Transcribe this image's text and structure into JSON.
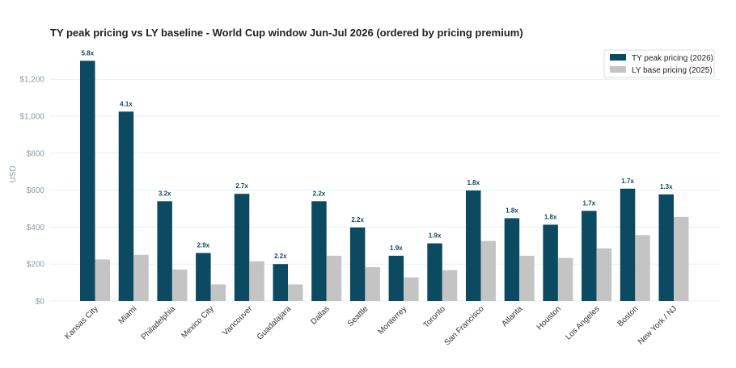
{
  "chart_data": {
    "type": "bar",
    "title": "TY peak pricing vs LY baseline - World Cup window Jun-Jul 2026 (ordered by pricing premium)",
    "ylabel": "USD",
    "xlabel": "",
    "ylim": [
      0,
      1380
    ],
    "yticks": [
      0,
      200,
      400,
      600,
      800,
      1000,
      1200
    ],
    "ytick_labels": [
      "$0",
      "$200",
      "$400",
      "$600",
      "$800",
      "$1,000",
      "$1,200"
    ],
    "grid": true,
    "legend_position": "top-right",
    "categories": [
      "Kansas City",
      "Miami",
      "Philadelphia",
      "Mexico City",
      "Vancouver",
      "Guadalajara",
      "Dallas",
      "Seattle",
      "Monterrey",
      "Toronto",
      "San Francisco",
      "Atlanta",
      "Houston",
      "Los Angeles",
      "Boston",
      "New York / NJ"
    ],
    "series": [
      {
        "name": "TY peak pricing (2026)",
        "color": "#0b4a60",
        "values": [
          1300,
          1025,
          540,
          260,
          580,
          200,
          540,
          398,
          245,
          312,
          598,
          448,
          413,
          488,
          608,
          577
        ]
      },
      {
        "name": "LY base pricing (2025)",
        "color": "#c4c4c4",
        "values": [
          225,
          250,
          170,
          90,
          215,
          90,
          245,
          183,
          128,
          167,
          325,
          245,
          233,
          285,
          357,
          455
        ]
      }
    ],
    "data_labels": [
      "5.8x",
      "4.1x",
      "3.2x",
      "2.9x",
      "2.7x",
      "2.2x",
      "2.2x",
      "2.2x",
      "1.9x",
      "1.9x",
      "1.8x",
      "1.8x",
      "1.8x",
      "1.7x",
      "1.7x",
      "1.3x"
    ]
  }
}
